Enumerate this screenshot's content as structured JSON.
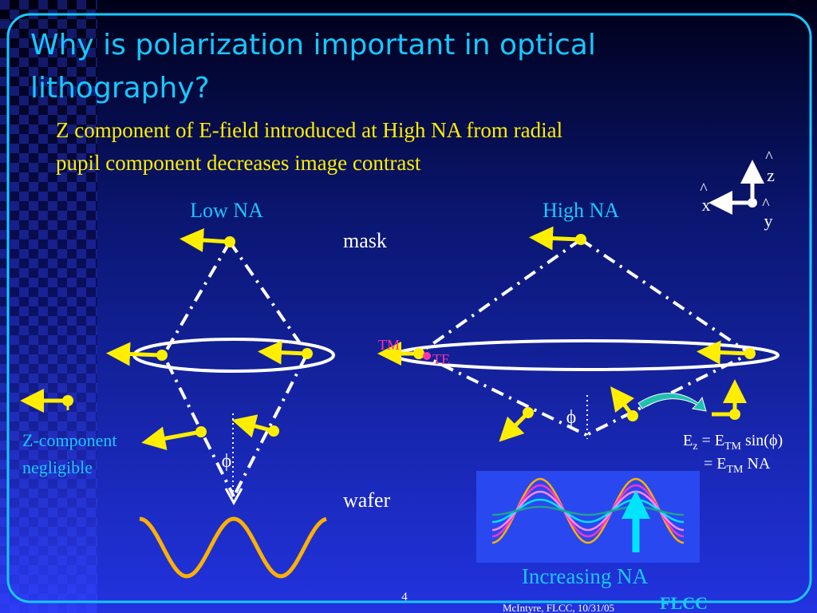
{
  "header": {
    "title_lines": [
      "Why is polarization important in optical",
      "lithography?"
    ]
  },
  "subtitle_lines": [
    "Z component of E-field introduced at High NA from radial",
    "pupil component decreases image contrast"
  ],
  "diagram": {
    "low_na": {
      "label": "Low NA",
      "angle": "ϕ"
    },
    "high_na": {
      "label": "High NA",
      "angle": "ϕ",
      "tm": "TM",
      "te": "TE"
    },
    "mask": "mask",
    "wafer": "wafer",
    "z_note": [
      "Z-component",
      "negligible"
    ],
    "axes": {
      "z": [
        "^",
        "z"
      ],
      "x": [
        "^",
        "x"
      ],
      "y": [
        "^",
        "y"
      ]
    },
    "formula": {
      "line1": [
        "E",
        "z",
        " = E",
        "TM",
        " sin(ϕ)"
      ],
      "line2": [
        "= E",
        "TM",
        " NA"
      ]
    },
    "increasing": "Increasing NA"
  },
  "footer": {
    "page": "4",
    "credit": "McIntyre, FLCC, 10/31/05",
    "logo": "FLCC"
  }
}
